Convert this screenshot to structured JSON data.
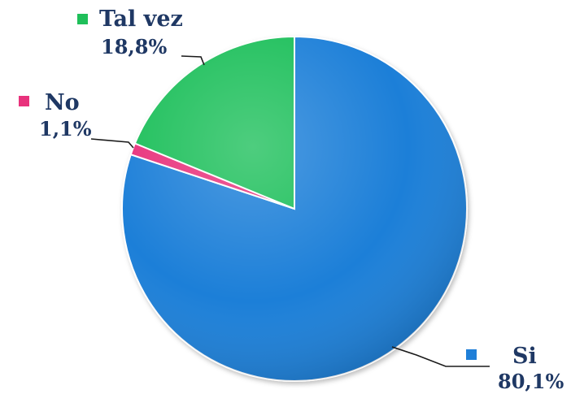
{
  "chart_data": {
    "type": "pie",
    "title": "",
    "slices": [
      {
        "label": "Si",
        "value": 80.1,
        "display": "80,1%",
        "color": "#1f7fd8"
      },
      {
        "label": "No",
        "value": 1.1,
        "display": "1,1%",
        "color": "#e8327c"
      },
      {
        "label": "Tal vez",
        "value": 18.8,
        "display": "18,8%",
        "color": "#1fbf5a"
      }
    ],
    "start_angle": "12 o'clock",
    "direction": "clockwise",
    "legend_style": "category markers beside data labels"
  }
}
